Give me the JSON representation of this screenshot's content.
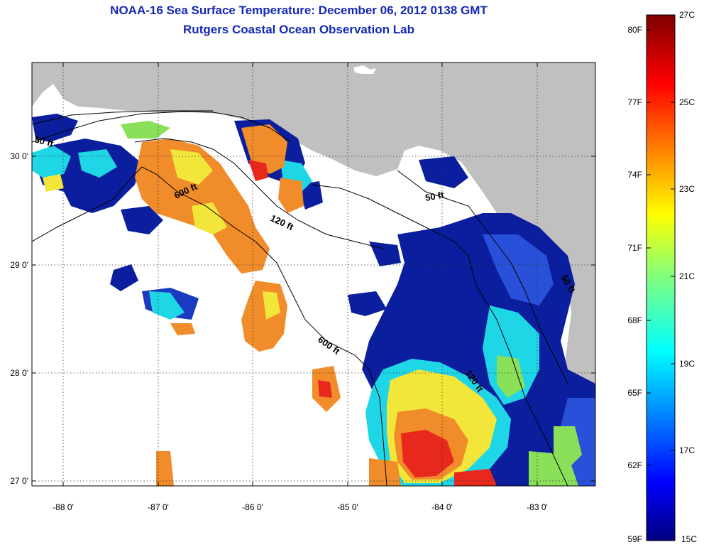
{
  "title": {
    "line1": "NOAA-16 Sea Surface Temperature:  December 06, 2012 0138 GMT",
    "line2": "Rutgers Coastal Ocean Observation Lab"
  },
  "map": {
    "lon_ticks": [
      "-88 0'",
      "-87 0'",
      "-86 0'",
      "-85 0'",
      "-84 0'",
      "-83 0'"
    ],
    "lat_ticks": [
      "30 0'",
      "29 0'",
      "28 0'",
      "27 0'"
    ],
    "contour_labels": [
      "50 ft",
      "600 ft",
      "120 ft",
      "50 ft",
      "600 ft",
      "120 ft",
      "50 ft"
    ]
  },
  "colorbar": {
    "fahrenheit": [
      "80F",
      "77F",
      "74F",
      "71F",
      "68F",
      "65F",
      "62F",
      "59F"
    ],
    "celsius": [
      "27C",
      "25C",
      "23C",
      "21C",
      "19C",
      "17C",
      "15C"
    ]
  },
  "colors": {
    "title": "#1428b4",
    "land": "#c0c0c0",
    "cloud": "#ffffff",
    "cold": "#0a1e9e",
    "cyan": "#1fd6e6",
    "green": "#8be05a",
    "yellow": "#f3e63a",
    "orange": "#f08c2a",
    "red": "#e8281c"
  }
}
